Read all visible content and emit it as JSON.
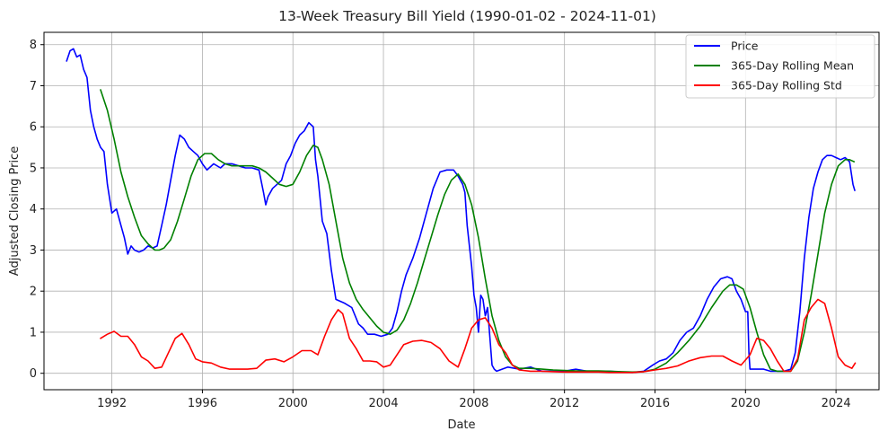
{
  "chart_data": {
    "type": "line",
    "title": "13-Week Treasury Bill Yield (1990-01-02 - 2024-11-01)",
    "xlabel": "Date",
    "ylabel": "Adjusted Closing Price",
    "xlim": [
      1989.0,
      2025.9
    ],
    "ylim": [
      -0.4,
      8.3
    ],
    "x_ticks": [
      1992,
      1996,
      2000,
      2004,
      2008,
      2012,
      2016,
      2020,
      2024
    ],
    "x_tick_labels": [
      "1992",
      "1996",
      "2000",
      "2004",
      "2008",
      "2012",
      "2016",
      "2020",
      "2024"
    ],
    "y_ticks": [
      0,
      1,
      2,
      3,
      4,
      5,
      6,
      7,
      8
    ],
    "y_tick_labels": [
      "0",
      "1",
      "2",
      "3",
      "4",
      "5",
      "6",
      "7",
      "8"
    ],
    "grid": true,
    "legend_position": "top-right",
    "series": [
      {
        "name": "Price",
        "color": "#0000ff",
        "x": [
          1990.0,
          1990.15,
          1990.3,
          1990.45,
          1990.6,
          1990.75,
          1990.9,
          1991.05,
          1991.2,
          1991.35,
          1991.5,
          1991.65,
          1991.8,
          1992.0,
          1992.2,
          1992.4,
          1992.55,
          1992.7,
          1992.85,
          1993.0,
          1993.2,
          1993.4,
          1993.6,
          1993.8,
          1994.0,
          1994.2,
          1994.4,
          1994.6,
          1994.8,
          1995.0,
          1995.2,
          1995.4,
          1995.6,
          1995.8,
          1996.0,
          1996.2,
          1996.5,
          1996.8,
          1997.0,
          1997.3,
          1997.6,
          1997.9,
          1998.2,
          1998.5,
          1998.7,
          1998.8,
          1998.9,
          1999.1,
          1999.3,
          1999.5,
          1999.7,
          1999.9,
          2000.1,
          2000.3,
          2000.5,
          2000.7,
          2000.9,
          2001.0,
          2001.1,
          2001.3,
          2001.5,
          2001.7,
          2001.9,
          2002.1,
          2002.3,
          2002.6,
          2002.9,
          2003.1,
          2003.3,
          2003.6,
          2003.9,
          2004.2,
          2004.4,
          2004.6,
          2004.8,
          2005.0,
          2005.3,
          2005.6,
          2005.9,
          2006.2,
          2006.5,
          2006.8,
          2007.1,
          2007.3,
          2007.5,
          2007.6,
          2007.7,
          2007.8,
          2007.9,
          2008.0,
          2008.1,
          2008.2,
          2008.3,
          2008.4,
          2008.5,
          2008.6,
          2008.7,
          2008.8,
          2008.9,
          2009.0,
          2009.5,
          2010.0,
          2010.5,
          2011.0,
          2011.5,
          2012.0,
          2012.5,
          2013.0,
          2013.5,
          2014.0,
          2014.5,
          2015.0,
          2015.5,
          2015.9,
          2016.2,
          2016.5,
          2016.8,
          2017.1,
          2017.4,
          2017.7,
          2018.0,
          2018.3,
          2018.6,
          2018.9,
          2019.2,
          2019.4,
          2019.6,
          2019.8,
          2020.0,
          2020.1,
          2020.15,
          2020.2,
          2020.5,
          2020.8,
          2021.1,
          2021.4,
          2021.7,
          2022.0,
          2022.2,
          2022.4,
          2022.6,
          2022.8,
          2023.0,
          2023.2,
          2023.4,
          2023.6,
          2023.8,
          2024.0,
          2024.2,
          2024.4,
          2024.6,
          2024.75,
          2024.83
        ],
        "y": [
          7.6,
          7.85,
          7.9,
          7.7,
          7.75,
          7.4,
          7.2,
          6.4,
          6.0,
          5.7,
          5.5,
          5.4,
          4.6,
          3.9,
          4.0,
          3.6,
          3.3,
          2.9,
          3.1,
          3.0,
          2.95,
          3.0,
          3.1,
          3.05,
          3.1,
          3.6,
          4.1,
          4.7,
          5.3,
          5.8,
          5.7,
          5.5,
          5.4,
          5.3,
          5.1,
          4.95,
          5.1,
          5.0,
          5.1,
          5.1,
          5.05,
          5.0,
          5.0,
          4.95,
          4.4,
          4.1,
          4.3,
          4.5,
          4.6,
          4.7,
          5.1,
          5.3,
          5.6,
          5.8,
          5.9,
          6.1,
          6.0,
          5.2,
          4.8,
          3.7,
          3.4,
          2.5,
          1.8,
          1.75,
          1.7,
          1.6,
          1.2,
          1.1,
          0.95,
          0.95,
          0.9,
          0.95,
          1.1,
          1.5,
          2.0,
          2.4,
          2.8,
          3.3,
          3.9,
          4.5,
          4.9,
          4.95,
          4.95,
          4.8,
          4.6,
          4.4,
          3.6,
          3.1,
          2.6,
          1.9,
          1.6,
          1.0,
          1.9,
          1.8,
          1.4,
          1.6,
          0.9,
          0.2,
          0.1,
          0.05,
          0.15,
          0.1,
          0.15,
          0.05,
          0.05,
          0.05,
          0.1,
          0.05,
          0.05,
          0.05,
          0.03,
          0.02,
          0.05,
          0.2,
          0.3,
          0.35,
          0.5,
          0.8,
          1.0,
          1.1,
          1.4,
          1.8,
          2.1,
          2.3,
          2.35,
          2.3,
          2.0,
          1.8,
          1.5,
          1.5,
          0.5,
          0.1,
          0.1,
          0.1,
          0.05,
          0.05,
          0.05,
          0.1,
          0.5,
          1.5,
          2.8,
          3.8,
          4.5,
          4.9,
          5.2,
          5.3,
          5.3,
          5.25,
          5.2,
          5.25,
          5.15,
          4.6,
          4.45
        ]
      },
      {
        "name": "365-Day Rolling Mean",
        "color": "#008000",
        "x": [
          1991.5,
          1991.8,
          1992.1,
          1992.4,
          1992.7,
          1993.0,
          1993.3,
          1993.6,
          1993.9,
          1994.1,
          1994.3,
          1994.6,
          1994.9,
          1995.2,
          1995.5,
          1995.8,
          1996.1,
          1996.4,
          1996.7,
          1997.0,
          1997.3,
          1997.6,
          1997.9,
          1998.2,
          1998.5,
          1998.8,
          1999.1,
          1999.4,
          1999.7,
          2000.0,
          2000.3,
          2000.6,
          2000.9,
          2001.1,
          2001.3,
          2001.6,
          2001.9,
          2002.2,
          2002.5,
          2002.8,
          2003.1,
          2003.4,
          2003.7,
          2004.0,
          2004.3,
          2004.6,
          2004.9,
          2005.2,
          2005.5,
          2005.8,
          2006.1,
          2006.4,
          2006.7,
          2007.0,
          2007.3,
          2007.6,
          2007.9,
          2008.2,
          2008.5,
          2008.8,
          2009.1,
          2009.4,
          2009.7,
          2010.0,
          2010.5,
          2011.0,
          2011.5,
          2012.0,
          2012.5,
          2013.0,
          2013.5,
          2014.0,
          2014.5,
          2015.0,
          2015.5,
          2016.0,
          2016.5,
          2017.0,
          2017.5,
          2018.0,
          2018.5,
          2019.0,
          2019.3,
          2019.6,
          2019.9,
          2020.2,
          2020.5,
          2020.8,
          2021.1,
          2021.4,
          2021.7,
          2022.0,
          2022.3,
          2022.6,
          2022.9,
          2023.2,
          2023.5,
          2023.8,
          2024.1,
          2024.4,
          2024.6,
          2024.8
        ],
        "y": [
          6.9,
          6.4,
          5.7,
          4.9,
          4.3,
          3.8,
          3.35,
          3.15,
          3.0,
          3.0,
          3.05,
          3.25,
          3.7,
          4.25,
          4.8,
          5.2,
          5.35,
          5.35,
          5.2,
          5.1,
          5.05,
          5.05,
          5.05,
          5.05,
          5.0,
          4.9,
          4.75,
          4.6,
          4.55,
          4.6,
          4.9,
          5.3,
          5.55,
          5.5,
          5.2,
          4.6,
          3.7,
          2.8,
          2.2,
          1.8,
          1.55,
          1.35,
          1.15,
          1.0,
          0.95,
          1.05,
          1.3,
          1.7,
          2.2,
          2.75,
          3.3,
          3.85,
          4.35,
          4.7,
          4.85,
          4.6,
          4.1,
          3.3,
          2.3,
          1.4,
          0.8,
          0.4,
          0.2,
          0.12,
          0.12,
          0.1,
          0.08,
          0.07,
          0.06,
          0.06,
          0.06,
          0.05,
          0.04,
          0.03,
          0.04,
          0.1,
          0.25,
          0.5,
          0.8,
          1.15,
          1.6,
          2.0,
          2.15,
          2.15,
          2.05,
          1.6,
          1.0,
          0.45,
          0.1,
          0.05,
          0.05,
          0.05,
          0.3,
          1.0,
          1.9,
          2.9,
          3.9,
          4.6,
          5.05,
          5.2,
          5.2,
          5.15
        ]
      },
      {
        "name": "365-Day Rolling Std",
        "color": "#ff0000",
        "x": [
          1991.5,
          1991.8,
          1992.1,
          1992.4,
          1992.7,
          1993.0,
          1993.3,
          1993.6,
          1993.9,
          1994.2,
          1994.5,
          1994.8,
          1995.1,
          1995.4,
          1995.7,
          1996.0,
          1996.4,
          1996.8,
          1997.2,
          1997.6,
          1998.0,
          1998.4,
          1998.8,
          1999.2,
          1999.6,
          2000.0,
          2000.4,
          2000.8,
          2001.1,
          2001.4,
          2001.7,
          2002.0,
          2002.2,
          2002.5,
          2002.8,
          2003.1,
          2003.4,
          2003.7,
          2004.0,
          2004.3,
          2004.6,
          2004.9,
          2005.3,
          2005.7,
          2006.1,
          2006.5,
          2006.9,
          2007.3,
          2007.6,
          2007.9,
          2008.2,
          2008.5,
          2008.8,
          2009.1,
          2009.4,
          2009.7,
          2010.0,
          2010.5,
          2011.0,
          2011.5,
          2012.0,
          2012.5,
          2013.0,
          2013.5,
          2014.0,
          2014.5,
          2015.0,
          2015.5,
          2016.0,
          2016.5,
          2017.0,
          2017.5,
          2018.0,
          2018.5,
          2019.0,
          2019.4,
          2019.8,
          2020.2,
          2020.5,
          2020.8,
          2021.1,
          2021.4,
          2021.7,
          2022.0,
          2022.3,
          2022.6,
          2022.9,
          2023.2,
          2023.5,
          2023.8,
          2024.1,
          2024.4,
          2024.7,
          2024.85
        ],
        "y": [
          0.85,
          0.95,
          1.02,
          0.9,
          0.9,
          0.7,
          0.4,
          0.3,
          0.12,
          0.15,
          0.5,
          0.85,
          0.97,
          0.7,
          0.35,
          0.28,
          0.25,
          0.15,
          0.1,
          0.1,
          0.1,
          0.12,
          0.32,
          0.35,
          0.28,
          0.4,
          0.55,
          0.55,
          0.45,
          0.9,
          1.3,
          1.55,
          1.45,
          0.85,
          0.6,
          0.3,
          0.3,
          0.28,
          0.15,
          0.2,
          0.45,
          0.7,
          0.78,
          0.8,
          0.75,
          0.6,
          0.3,
          0.15,
          0.6,
          1.1,
          1.3,
          1.35,
          1.1,
          0.7,
          0.5,
          0.2,
          0.08,
          0.05,
          0.05,
          0.04,
          0.03,
          0.03,
          0.03,
          0.03,
          0.02,
          0.02,
          0.02,
          0.04,
          0.08,
          0.12,
          0.18,
          0.3,
          0.38,
          0.42,
          0.42,
          0.3,
          0.2,
          0.45,
          0.85,
          0.8,
          0.6,
          0.3,
          0.05,
          0.05,
          0.35,
          1.3,
          1.6,
          1.8,
          1.7,
          1.1,
          0.4,
          0.2,
          0.12,
          0.25
        ]
      }
    ]
  }
}
